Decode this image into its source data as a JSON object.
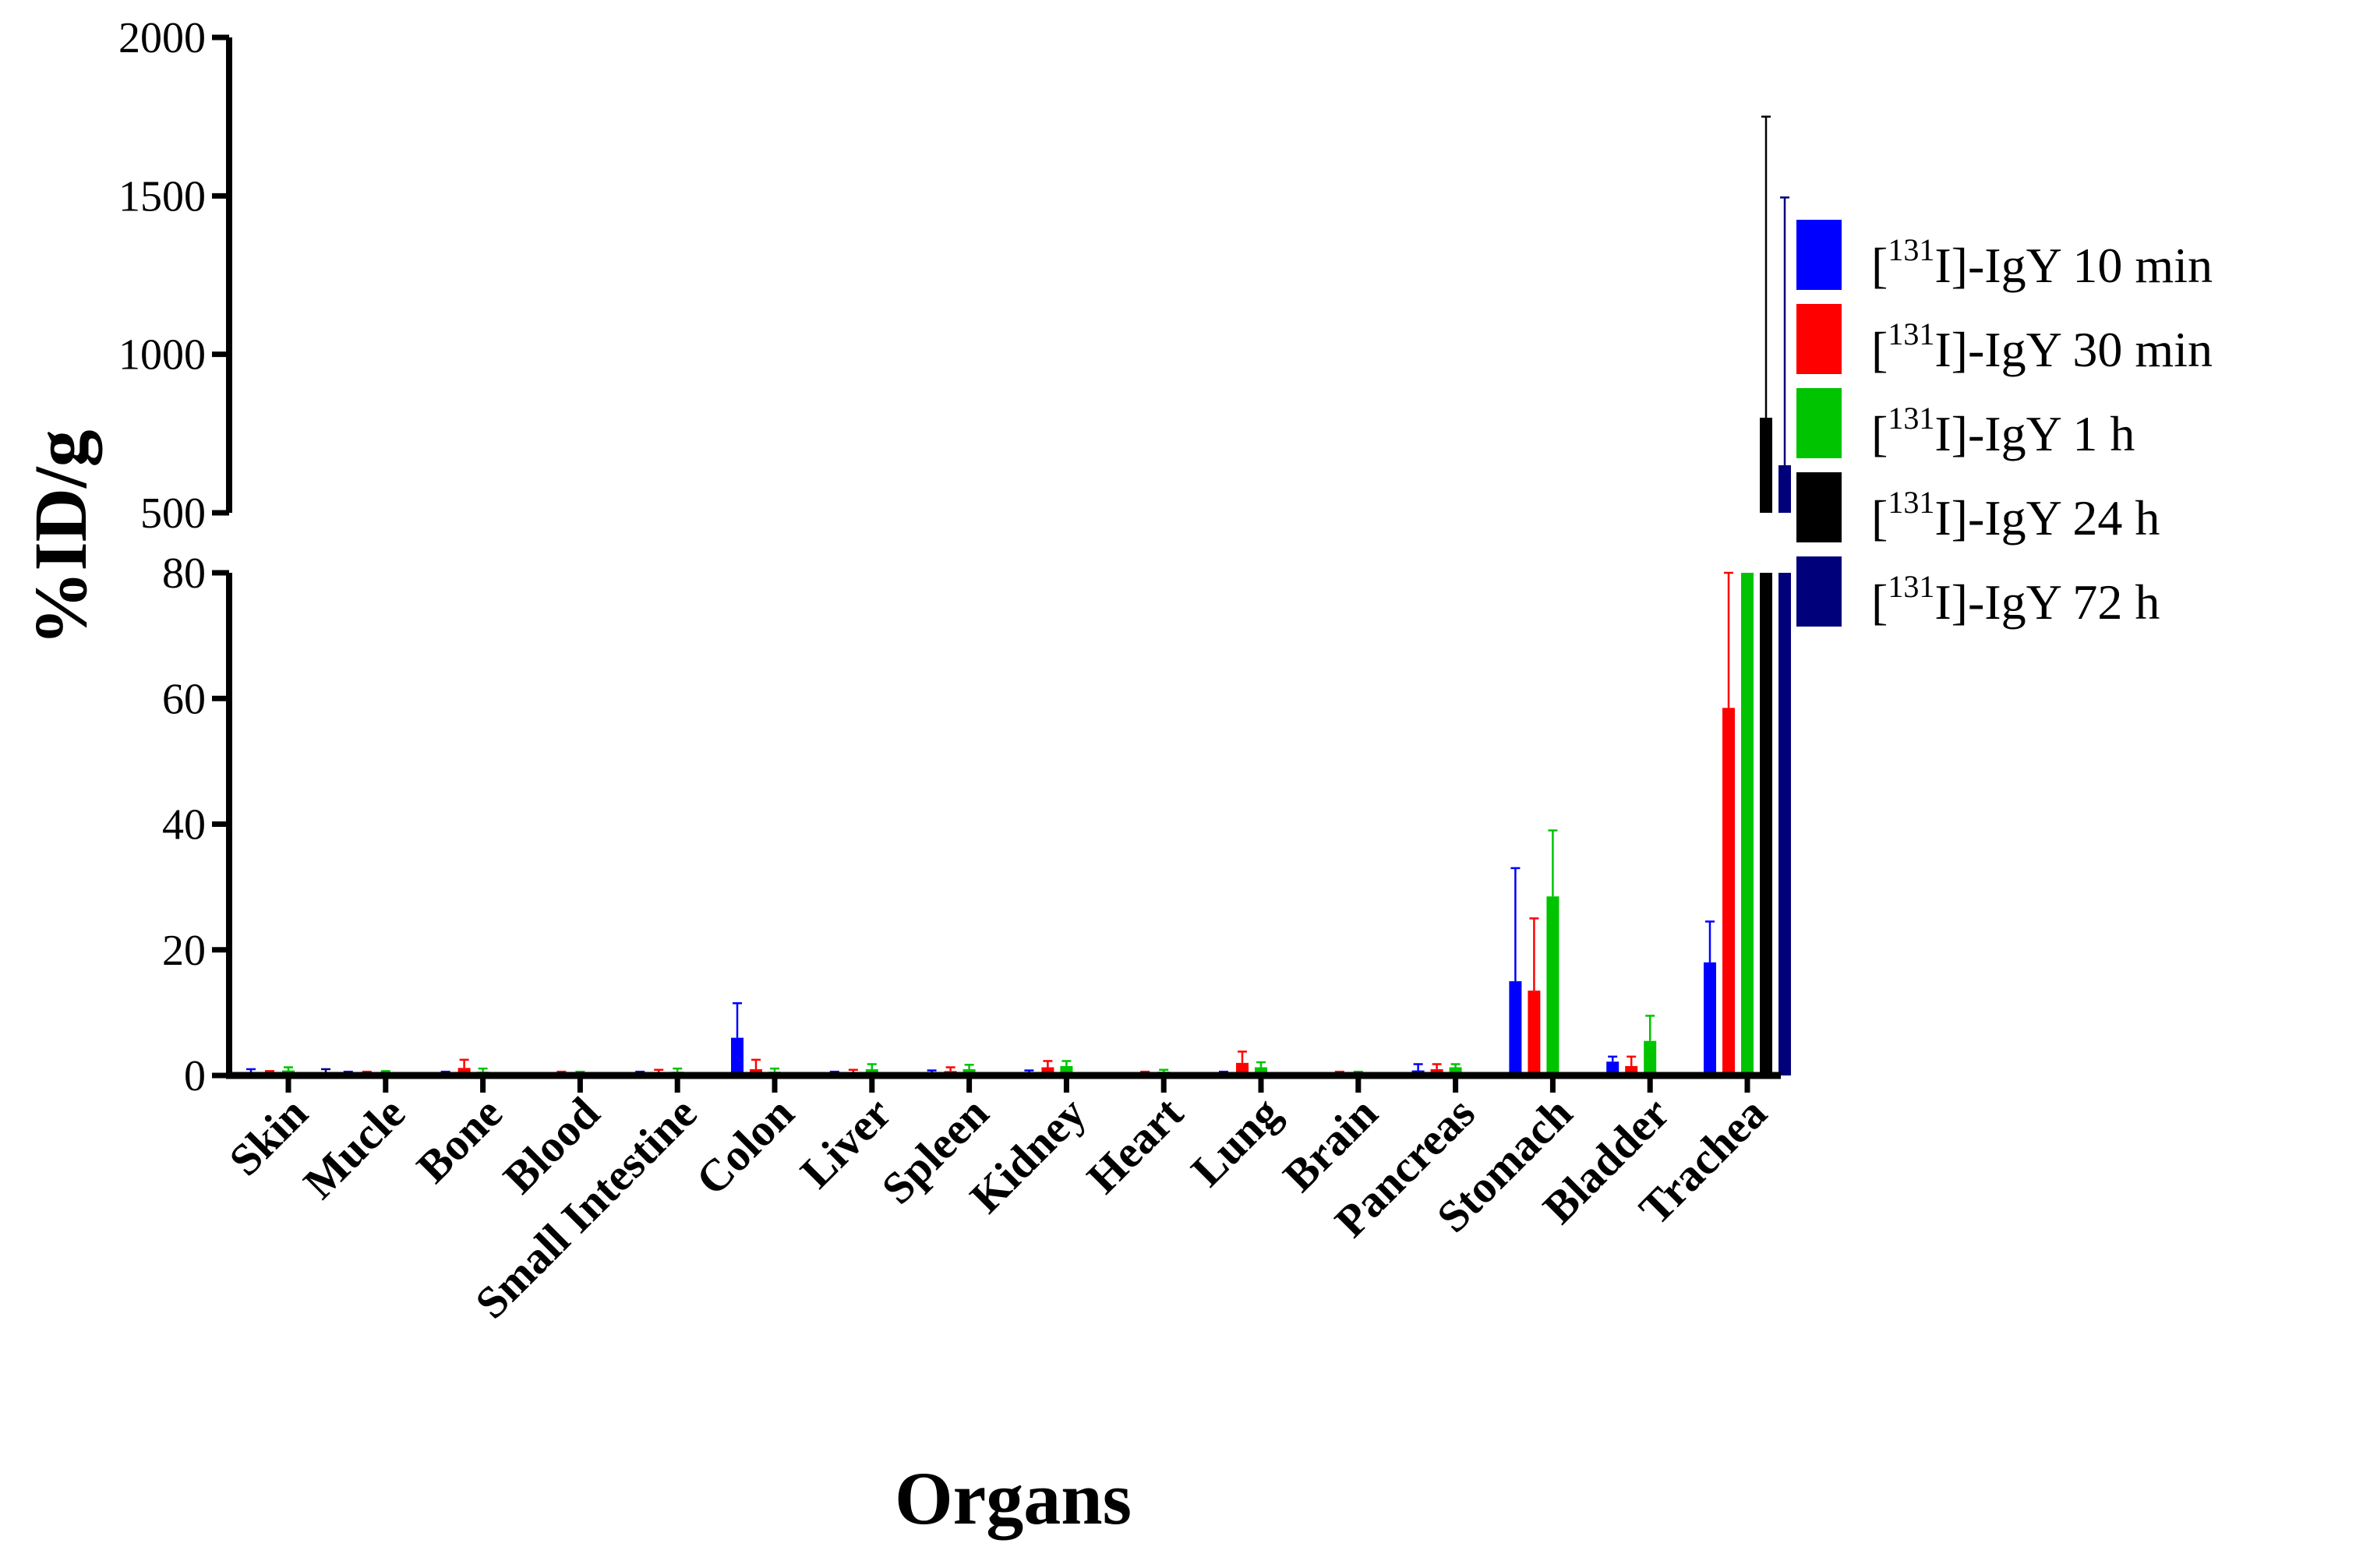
{
  "chart_data": {
    "type": "bar",
    "title": "",
    "xlabel": "Organs",
    "ylabel": "%ID/g",
    "y_axis_break": {
      "lower_range": [
        0,
        80
      ],
      "upper_range": [
        500,
        2000
      ],
      "lower_ticks": [
        "0",
        "20",
        "40",
        "60",
        "80"
      ],
      "upper_ticks": [
        "500",
        "1000",
        "1500",
        "2000"
      ]
    },
    "legend_position": "right",
    "categories": [
      "Skin",
      "Mucle",
      "Bone",
      "Blood",
      "Small Intestine",
      "Colon",
      "Liver",
      "Spleen",
      "Kidney",
      "Heart",
      "Lung",
      "Brain",
      "Pancreas",
      "Stomach",
      "Bladder",
      "Trachea"
    ],
    "series": [
      {
        "name": "[131I]-IgY 10 min",
        "legend_bracket": "[",
        "legend_sup": "131",
        "legend_rest": "I]-IgY 10 min",
        "color": "#0000ff",
        "values": [
          0.5,
          0.3,
          0.3,
          0.2,
          0.3,
          6.0,
          0.3,
          0.4,
          0.4,
          0.2,
          0.3,
          0.2,
          0.8,
          15.0,
          2.2,
          18.0
        ],
        "errors": [
          0.5,
          0.3,
          0.3,
          0.2,
          0.3,
          5.5,
          0.3,
          0.4,
          0.4,
          0.2,
          0.3,
          0.2,
          1.0,
          18.0,
          0.8,
          6.5
        ]
      },
      {
        "name": "[131I]-IgY 30 min",
        "legend_bracket": "[",
        "legend_sup": "131",
        "legend_rest": "I]-IgY 30 min",
        "color": "#ff0000",
        "values": [
          0.4,
          0.3,
          1.2,
          0.3,
          0.5,
          1.0,
          0.5,
          0.7,
          1.3,
          0.3,
          2.0,
          0.3,
          1.0,
          13.5,
          1.5,
          58.5
        ],
        "errors": [
          0.3,
          0.3,
          1.3,
          0.3,
          0.4,
          1.5,
          0.4,
          0.6,
          1.0,
          0.3,
          1.8,
          0.3,
          0.8,
          11.5,
          1.5,
          21.5
        ]
      },
      {
        "name": "[131I]-IgY 1 h",
        "legend_bracket": "[",
        "legend_sup": "131",
        "legend_rest": "I]-IgY 1 h",
        "color": "#00c400",
        "values": [
          0.8,
          0.4,
          0.6,
          0.3,
          0.6,
          0.6,
          1.0,
          1.0,
          1.5,
          0.6,
          1.3,
          0.3,
          1.3,
          28.5,
          5.5,
          100.0
        ],
        "errors": [
          0.5,
          0.3,
          0.5,
          0.3,
          0.5,
          0.5,
          0.8,
          0.7,
          0.8,
          0.3,
          0.8,
          0.3,
          0.5,
          10.5,
          4.0,
          0
        ]
      },
      {
        "name": "[131I]-IgY 24 h",
        "legend_bracket": "[",
        "legend_sup": "131",
        "legend_rest": "I]-IgY 24 h",
        "color": "#000000",
        "values": [
          0.2,
          0.2,
          0.2,
          0.2,
          0.2,
          0.2,
          0.2,
          0.2,
          0.2,
          0.2,
          0.2,
          0.2,
          0.2,
          0.2,
          0.2,
          800
        ],
        "errors": [
          0,
          0,
          0,
          0,
          0,
          0,
          0,
          0,
          0,
          0,
          0,
          0,
          0,
          0,
          0,
          950
        ]
      },
      {
        "name": "[131I]-IgY 72 h",
        "legend_bracket": "[",
        "legend_sup": "131",
        "legend_rest": "I]-IgY 72 h",
        "color": "#00007a",
        "values": [
          0.4,
          0.2,
          0.2,
          0.2,
          0.2,
          0.2,
          0.2,
          0.2,
          0.2,
          0.2,
          0.2,
          0.2,
          0.2,
          0.2,
          0.2,
          650
        ],
        "errors": [
          0.6,
          0,
          0,
          0,
          0,
          0,
          0,
          0,
          0,
          0,
          0,
          0,
          0,
          0,
          0,
          845
        ]
      }
    ]
  }
}
